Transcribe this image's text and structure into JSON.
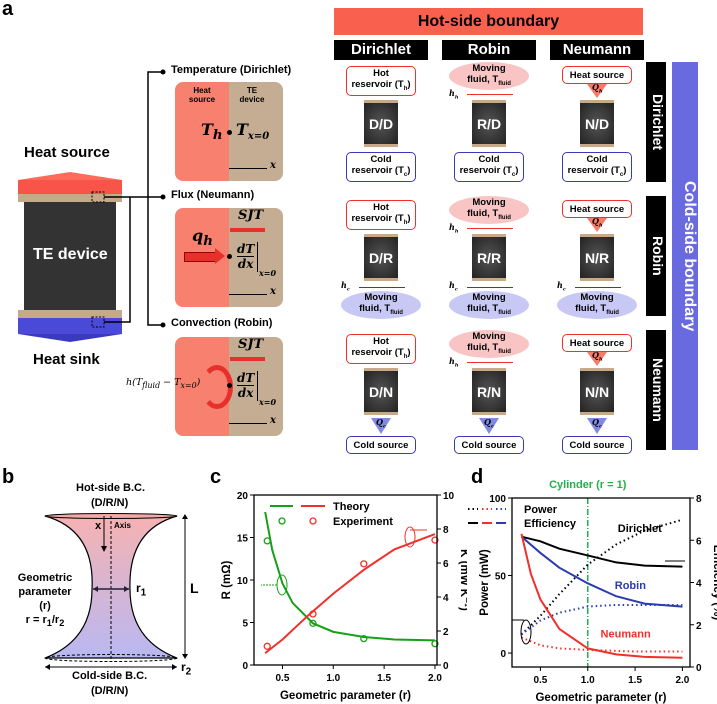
{
  "panel_a": {
    "label": "a",
    "heat_source": "Heat source",
    "te_device": "TE device",
    "heat_sink": "Heat sink",
    "bc_temperature": {
      "title": "Temperature (Dirichlet)",
      "left": "Heat source",
      "right": "TE device",
      "th": "T",
      "th_sub": "h",
      "tx": "T",
      "tx_sub": "x=0",
      "axis": "x"
    },
    "bc_flux": {
      "title": "Flux (Neumann)",
      "qh": "q",
      "qh_sub": "h",
      "sjt": "SJT",
      "dT": "dT",
      "dx": "dx",
      "eval": "x=0",
      "axis": "x"
    },
    "bc_convection": {
      "title": "Convection (Robin)",
      "expr": "h(T",
      "expr_sub1": "fluid",
      "expr_mid": " − T",
      "expr_sub2": "x=0",
      "expr_end": ")",
      "sjt": "SJT",
      "dT": "dT",
      "dx": "dx",
      "eval": "x=0",
      "axis": "x"
    },
    "hot_banner": "Hot-side boundary",
    "cold_banner": "Cold-side boundary",
    "columns": [
      "Dirichlet",
      "Robin",
      "Neumann"
    ],
    "rows": [
      "Dirichlet",
      "Robin",
      "Neumann"
    ],
    "top_elements": {
      "Dirichlet": {
        "type": "box",
        "l1": "Hot",
        "l2": "reservoir (T",
        "sub": "h",
        "end": ")"
      },
      "Robin": {
        "type": "cloud",
        "l1": "Moving",
        "l2": "fluid, T",
        "sub": "fluid",
        "end": "",
        "arrow": "h",
        "arrow_sub": "h"
      },
      "Neumann": {
        "type": "source",
        "l1": "Heat source",
        "arrow": "Q",
        "arrow_sub": "h"
      }
    },
    "bottom_elements": {
      "Dirichlet": {
        "type": "box",
        "l1": "Cold",
        "l2": "reservoir (T",
        "sub": "c",
        "end": ")"
      },
      "Robin": {
        "type": "cloud",
        "l1": "Moving",
        "l2": "fluid, T",
        "sub": "fluid",
        "end": "",
        "arrow": "h",
        "arrow_sub": "c"
      },
      "Neumann": {
        "type": "source",
        "l1": "Cold source",
        "arrow": "Q",
        "arrow_sub": "c"
      }
    },
    "cells": [
      [
        "D/D",
        "R/D",
        "N/D"
      ],
      [
        "D/R",
        "R/R",
        "N/R"
      ],
      [
        "D/N",
        "R/N",
        "N/N"
      ]
    ],
    "colors": {
      "hot": "#f9614e",
      "cold": "#6a6ae0",
      "hot_border": "#f0312a",
      "cold_border": "#3a3ab8"
    }
  },
  "panel_b": {
    "label": "b",
    "hot_side": "Hot-side B.C.",
    "hot_side_sub": "(D/R/N)",
    "cold_side": "Cold-side B.C.",
    "cold_side_sub": "(D/R/N)",
    "x_label": "x",
    "axis_label": "Axis",
    "geom1": "Geometric",
    "geom2": "parameter (r)",
    "geom3": "r = r",
    "geom3_sub1": "1",
    "geom3_mid": "/r",
    "geom3_sub2": "2",
    "r1": "r",
    "r1_sub": "1",
    "r2": "r",
    "r2_sub": "2",
    "L": "L"
  },
  "chart_data": [
    {
      "panel": "c",
      "type": "line",
      "xlabel": "Geometric parameter (r)",
      "ylabel": "R (mΩ)",
      "y2label": "K (mW K⁻¹)",
      "xlim": [
        0.22,
        2.02
      ],
      "ylim": [
        0,
        20
      ],
      "y2lim": [
        0,
        10
      ],
      "xticks": [
        0.5,
        1.0,
        1.5,
        2.0
      ],
      "xtick_labels": [
        "0.5",
        "1.0",
        "1.5",
        "2.0"
      ],
      "yticks": [
        0,
        5,
        10,
        15,
        20
      ],
      "ytick_labels": [
        "0",
        "5",
        "10",
        "15",
        "20"
      ],
      "y2ticks": [
        0,
        2,
        4,
        6,
        8,
        10
      ],
      "y2tick_labels": [
        "0",
        "2",
        "4",
        "6",
        "8",
        "10"
      ],
      "legend": [
        "Theory",
        "Experiment"
      ],
      "legend_position": "top",
      "series": [
        {
          "name": "R theory",
          "axis": "left",
          "style": "line",
          "color": "#16a016",
          "x": [
            0.33,
            0.4,
            0.5,
            0.6,
            0.8,
            1.0,
            1.3,
            1.6,
            2.0
          ],
          "y": [
            18,
            13.5,
            9.6,
            7.3,
            4.9,
            3.9,
            3.3,
            3.0,
            2.9
          ]
        },
        {
          "name": "K theory",
          "axis": "right",
          "style": "line",
          "color": "#f0302a",
          "x": [
            0.33,
            0.5,
            0.75,
            1.0,
            1.3,
            1.6,
            2.0
          ],
          "y": [
            0.7,
            1.5,
            2.9,
            4.2,
            5.6,
            6.8,
            7.7
          ]
        },
        {
          "name": "R experiment",
          "axis": "left",
          "style": "marker",
          "color": "#16a016",
          "x": [
            0.35,
            0.8,
            1.3,
            2.0
          ],
          "y": [
            14.6,
            4.9,
            3.1,
            2.5
          ]
        },
        {
          "name": "K experiment",
          "axis": "right",
          "style": "marker",
          "color": "#f0302a",
          "x": [
            0.35,
            0.8,
            1.3,
            2.0
          ],
          "y": [
            1.1,
            3.0,
            5.95,
            7.35
          ]
        }
      ]
    },
    {
      "panel": "d",
      "type": "line",
      "title": "Cylinder (r = 1)",
      "xlabel": "Geometric parameter (r)",
      "ylabel": "Power (mW)",
      "y2label": "Efficiency (%)",
      "xlim": [
        0.2,
        2.08
      ],
      "ylim": [
        -9,
        100
      ],
      "y2lim": [
        0,
        8
      ],
      "xticks": [
        0.5,
        1.0,
        1.5,
        2.0
      ],
      "xtick_labels": [
        "0.5",
        "1.0",
        "1.5",
        "2.0"
      ],
      "yticks": [
        0,
        50,
        100
      ],
      "ytick_labels": [
        "0",
        "50",
        "100"
      ],
      "y2ticks": [
        0,
        2,
        4,
        6,
        8
      ],
      "y2tick_labels": [
        "0",
        "2",
        "4",
        "6",
        "8"
      ],
      "vline": 1.0,
      "legend": [
        "Power",
        "Efficiency"
      ],
      "legend_position": "top-left",
      "annotations": [
        {
          "text": "Dirichlet",
          "x": 1.55,
          "y": 6.4,
          "color": "#000000"
        },
        {
          "text": "Robin",
          "x": 1.45,
          "y": 3.7,
          "color": "#2a3ab0"
        },
        {
          "text": "Neumann",
          "x": 1.4,
          "y": 1.4,
          "color": "#f0302a"
        }
      ],
      "series": [
        {
          "name": "Dirichlet power",
          "axis": "left",
          "style": "dotted",
          "color": "#000000",
          "x": [
            0.3,
            0.5,
            0.7,
            1.0,
            1.3,
            1.6,
            2.0
          ],
          "y": [
            12,
            24,
            38,
            57,
            70,
            79,
            86
          ]
        },
        {
          "name": "Robin power",
          "axis": "left",
          "style": "dotted",
          "color": "#2a3ab0",
          "x": [
            0.3,
            0.5,
            0.7,
            1.0,
            1.3,
            1.6,
            2.0
          ],
          "y": [
            12,
            21,
            26,
            30,
            31,
            31,
            31
          ]
        },
        {
          "name": "Neumann power",
          "axis": "left",
          "style": "dotted",
          "color": "#f0302a",
          "x": [
            0.3,
            0.5,
            0.7,
            1.0,
            1.5,
            2.0
          ],
          "y": [
            10,
            5,
            3,
            2,
            1,
            1
          ]
        },
        {
          "name": "Dirichlet efficiency",
          "axis": "right",
          "style": "line",
          "color": "#000000",
          "x": [
            0.3,
            0.5,
            0.7,
            1.0,
            1.3,
            1.6,
            2.0
          ],
          "y": [
            6.17,
            5.95,
            5.6,
            5.28,
            4.95,
            4.8,
            4.75
          ]
        },
        {
          "name": "Robin efficiency",
          "axis": "right",
          "style": "line",
          "color": "#2a3ab0",
          "x": [
            0.3,
            0.5,
            0.7,
            1.0,
            1.3,
            1.6,
            2.0
          ],
          "y": [
            6.17,
            5.4,
            4.7,
            3.96,
            3.35,
            3.0,
            2.86
          ]
        },
        {
          "name": "Neumann efficiency",
          "axis": "right",
          "style": "line",
          "color": "#f0302a",
          "x": [
            0.3,
            0.4,
            0.5,
            0.7,
            1.0,
            1.3,
            1.6,
            2.0
          ],
          "y": [
            6.3,
            4.4,
            3.2,
            1.8,
            0.88,
            0.6,
            0.48,
            0.44
          ]
        }
      ]
    }
  ]
}
